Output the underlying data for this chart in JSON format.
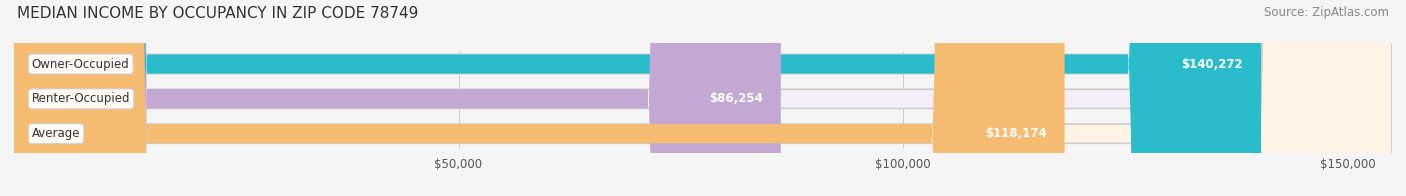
{
  "title": "MEDIAN INCOME BY OCCUPANCY IN ZIP CODE 78749",
  "source": "Source: ZipAtlas.com",
  "categories": [
    "Owner-Occupied",
    "Renter-Occupied",
    "Average"
  ],
  "values": [
    140272,
    86254,
    118174
  ],
  "labels": [
    "$140,272",
    "$86,254",
    "$118,174"
  ],
  "bar_colors": [
    "#2bbccc",
    "#c4a8d4",
    "#f5bc72"
  ],
  "bar_bg_colors": [
    "#e8f8fa",
    "#f3eef7",
    "#fef3e4"
  ],
  "xlim": [
    0,
    155000
  ],
  "xticks": [
    0,
    50000,
    100000,
    150000
  ],
  "xticklabels": [
    "",
    "$50,000",
    "$100,000",
    "$150,000"
  ],
  "background_color": "#f5f5f5",
  "bar_bg_color": "#eeeeee",
  "title_fontsize": 11,
  "source_fontsize": 8.5,
  "label_fontsize": 8.5,
  "category_fontsize": 8.5,
  "tick_fontsize": 8.5
}
